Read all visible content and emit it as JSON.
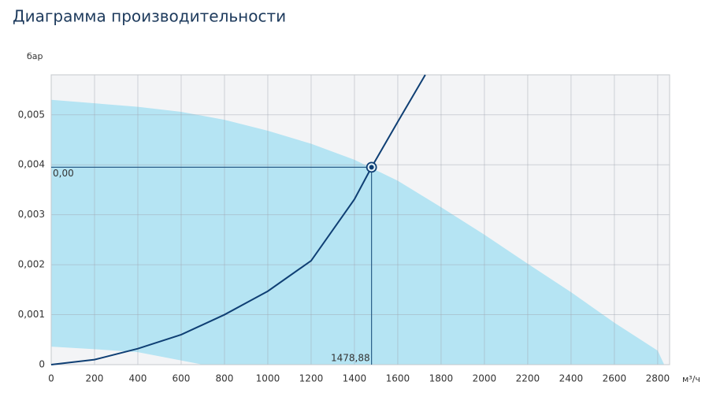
{
  "chart_data": {
    "type": "performance",
    "title": "Диаграмма производительности",
    "y_label": "бар",
    "x_label": "м³/ч",
    "xlim": [
      0,
      2855
    ],
    "ylim": [
      0,
      0.0058
    ],
    "xticks": [
      0,
      200,
      400,
      600,
      800,
      1000,
      1200,
      1400,
      1600,
      1800,
      2000,
      2200,
      2400,
      2600,
      2800
    ],
    "yticks": [
      0,
      {
        "value": 0.001,
        "label": "0,001"
      },
      {
        "value": 0.002,
        "label": "0,002"
      },
      {
        "value": 0.003,
        "label": "0,003"
      },
      {
        "value": 0.004,
        "label": "0,004"
      },
      {
        "value": 0.005,
        "label": "0,005"
      }
    ],
    "grid": true,
    "upper_area": {
      "color": "#b5e4f3",
      "x": [
        0,
        400,
        600,
        800,
        1000,
        1200,
        1400,
        1600,
        1800,
        2000,
        2200,
        2400,
        2600,
        2800,
        2830
      ],
      "values": [
        0.0053,
        0.00516,
        0.00506,
        0.0049,
        0.00468,
        0.00442,
        0.0041,
        0.00368,
        0.00315,
        0.0026,
        0.00202,
        0.00145,
        0.00084,
        0.00028,
        0
      ]
    },
    "lower_area": {
      "color": "#f3f4f6",
      "x": [
        0,
        200,
        400,
        700
      ],
      "values": [
        0.00036,
        0.00031,
        0.00025,
        0
      ]
    },
    "system_curve": {
      "color": "#0f3f74",
      "x": [
        0,
        200,
        400,
        600,
        800,
        1000,
        1200,
        1400,
        1478.88,
        1600,
        1727
      ],
      "values": [
        0,
        0.0001,
        0.00032,
        0.0006,
        0.001,
        0.00147,
        0.00208,
        0.00331,
        0.00395,
        0.00486,
        0.0058
      ]
    },
    "operating_point": {
      "x": 1478.88,
      "y": 0.00395,
      "x_label": "1478,88",
      "y_label": "0,00",
      "color": "#2a5f8a"
    }
  }
}
